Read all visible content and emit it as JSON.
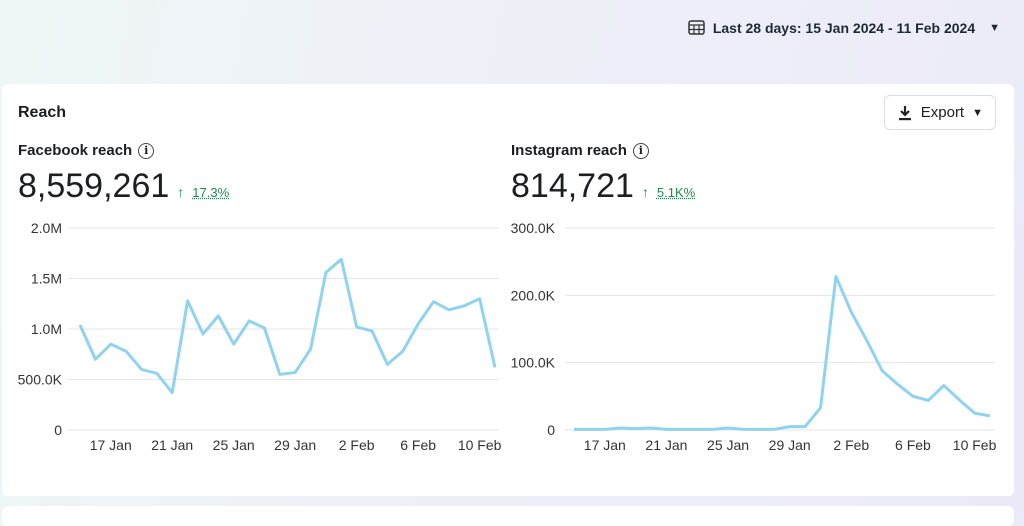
{
  "date_range": {
    "label": "Last 28 days: 15 Jan 2024 - 11 Feb 2024"
  },
  "card": {
    "title": "Reach",
    "export_label": "Export"
  },
  "facebook": {
    "label": "Facebook reach",
    "value": "8,559,261",
    "delta": "17.3%"
  },
  "instagram": {
    "label": "Instagram reach",
    "value": "814,721",
    "delta": "5.1K%"
  },
  "colors": {
    "line": "#8fd3ef",
    "delta": "#1e8a4c"
  },
  "chart_data": [
    {
      "type": "line",
      "title": "Facebook reach",
      "x": [
        "15 Jan",
        "16 Jan",
        "17 Jan",
        "18 Jan",
        "19 Jan",
        "20 Jan",
        "21 Jan",
        "22 Jan",
        "23 Jan",
        "24 Jan",
        "25 Jan",
        "26 Jan",
        "27 Jan",
        "28 Jan",
        "29 Jan",
        "30 Jan",
        "31 Jan",
        "1 Feb",
        "2 Feb",
        "3 Feb",
        "4 Feb",
        "5 Feb",
        "6 Feb",
        "7 Feb",
        "8 Feb",
        "9 Feb",
        "10 Feb",
        "11 Feb"
      ],
      "values": [
        1040000,
        700000,
        850000,
        780000,
        600000,
        560000,
        370000,
        1280000,
        950000,
        1130000,
        850000,
        1080000,
        1010000,
        550000,
        570000,
        800000,
        1560000,
        1690000,
        1020000,
        980000,
        650000,
        780000,
        1050000,
        1270000,
        1190000,
        1230000,
        1300000,
        620000
      ],
      "ylim": [
        0,
        2000000
      ],
      "yticks": [
        "0",
        "500.0K",
        "1.0M",
        "1.5M",
        "2.0M"
      ],
      "xticks": [
        "17 Jan",
        "21 Jan",
        "25 Jan",
        "29 Jan",
        "2 Feb",
        "6 Feb",
        "10 Feb"
      ],
      "grid": true
    },
    {
      "type": "line",
      "title": "Instagram reach",
      "x": [
        "15 Jan",
        "16 Jan",
        "17 Jan",
        "18 Jan",
        "19 Jan",
        "20 Jan",
        "21 Jan",
        "22 Jan",
        "23 Jan",
        "24 Jan",
        "25 Jan",
        "26 Jan",
        "27 Jan",
        "28 Jan",
        "29 Jan",
        "30 Jan",
        "31 Jan",
        "1 Feb",
        "2 Feb",
        "3 Feb",
        "4 Feb",
        "5 Feb",
        "6 Feb",
        "7 Feb",
        "8 Feb",
        "9 Feb",
        "10 Feb",
        "11 Feb"
      ],
      "values": [
        1000,
        1000,
        1000,
        3000,
        2000,
        3000,
        1000,
        1000,
        1000,
        1000,
        3000,
        1000,
        1000,
        1000,
        5000,
        5000,
        33000,
        228000,
        175000,
        133000,
        88000,
        68000,
        50000,
        44000,
        66000,
        45000,
        25000,
        21000
      ],
      "ylim": [
        0,
        300000
      ],
      "yticks": [
        "0",
        "100.0K",
        "200.0K",
        "300.0K"
      ],
      "xticks": [
        "17 Jan",
        "21 Jan",
        "25 Jan",
        "29 Jan",
        "2 Feb",
        "6 Feb",
        "10 Feb"
      ],
      "grid": true
    }
  ]
}
